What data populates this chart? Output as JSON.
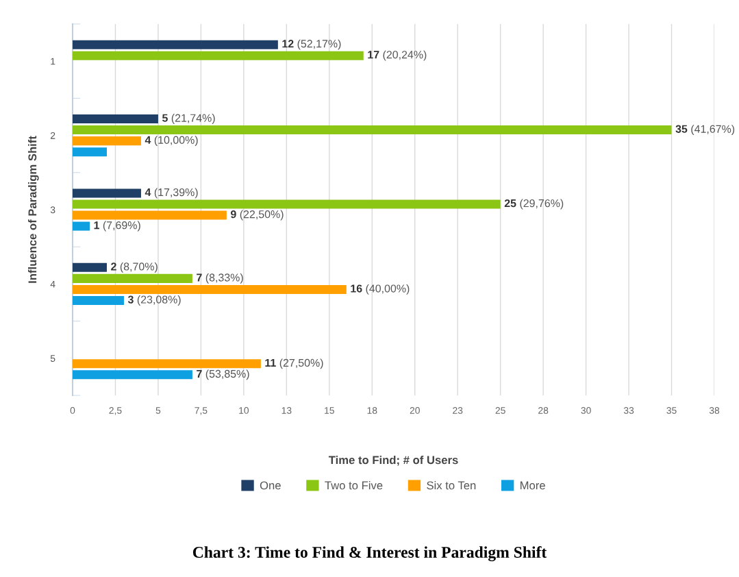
{
  "chart_data": {
    "type": "bar",
    "orientation": "horizontal",
    "title": "Chart 3: Time to Find & Interest in Paradigm Shift",
    "xlabel": "Time to Find; # of Users",
    "ylabel": "Influence of Paradigm Shift",
    "categories": [
      "1",
      "2",
      "3",
      "4",
      "5"
    ],
    "series": [
      {
        "name": "One",
        "color": "#1f3f66",
        "values": [
          12,
          5,
          4,
          2,
          null
        ],
        "value_labels": [
          "12 (52,17%)",
          "5 (21,74%)",
          "4 (17,39%)",
          "2 (8,70%)",
          null
        ]
      },
      {
        "name": "Two to Five",
        "color": "#8cc614",
        "values": [
          17,
          35,
          25,
          7,
          null
        ],
        "value_labels": [
          "17 (20,24%)",
          "35 (41,67%)",
          "25 (29,76%)",
          "7 (8,33%)",
          null
        ]
      },
      {
        "name": "Six to Ten",
        "color": "#ffa000",
        "values": [
          null,
          4,
          9,
          16,
          11
        ],
        "value_labels": [
          null,
          "4 (10,00%)",
          "9 (22,50%)",
          "16 (40,00%)",
          "11 (27,50%)"
        ]
      },
      {
        "name": "More",
        "color": "#0ea0e0",
        "values": [
          null,
          2,
          1,
          3,
          7
        ],
        "value_labels": [
          null,
          null,
          "1 (7,69%)",
          "3 (23,08%)",
          "7 (53,85%)"
        ]
      }
    ],
    "xlim": [
      0,
      37.5
    ],
    "xticks": [
      0,
      {
        "value": 2.5,
        "label": "2,5"
      },
      5,
      {
        "value": 7.5,
        "label": "7,5"
      },
      10,
      {
        "value": 12.5,
        "label": "13"
      },
      15,
      {
        "value": 17.5,
        "label": "18"
      },
      20,
      {
        "value": 22.5,
        "label": "23"
      },
      25,
      {
        "value": 27.5,
        "label": "28"
      },
      30,
      {
        "value": 32.5,
        "label": "33"
      },
      35,
      {
        "value": 37.5,
        "label": "38"
      }
    ],
    "grid": "x",
    "legend": "bottom"
  }
}
